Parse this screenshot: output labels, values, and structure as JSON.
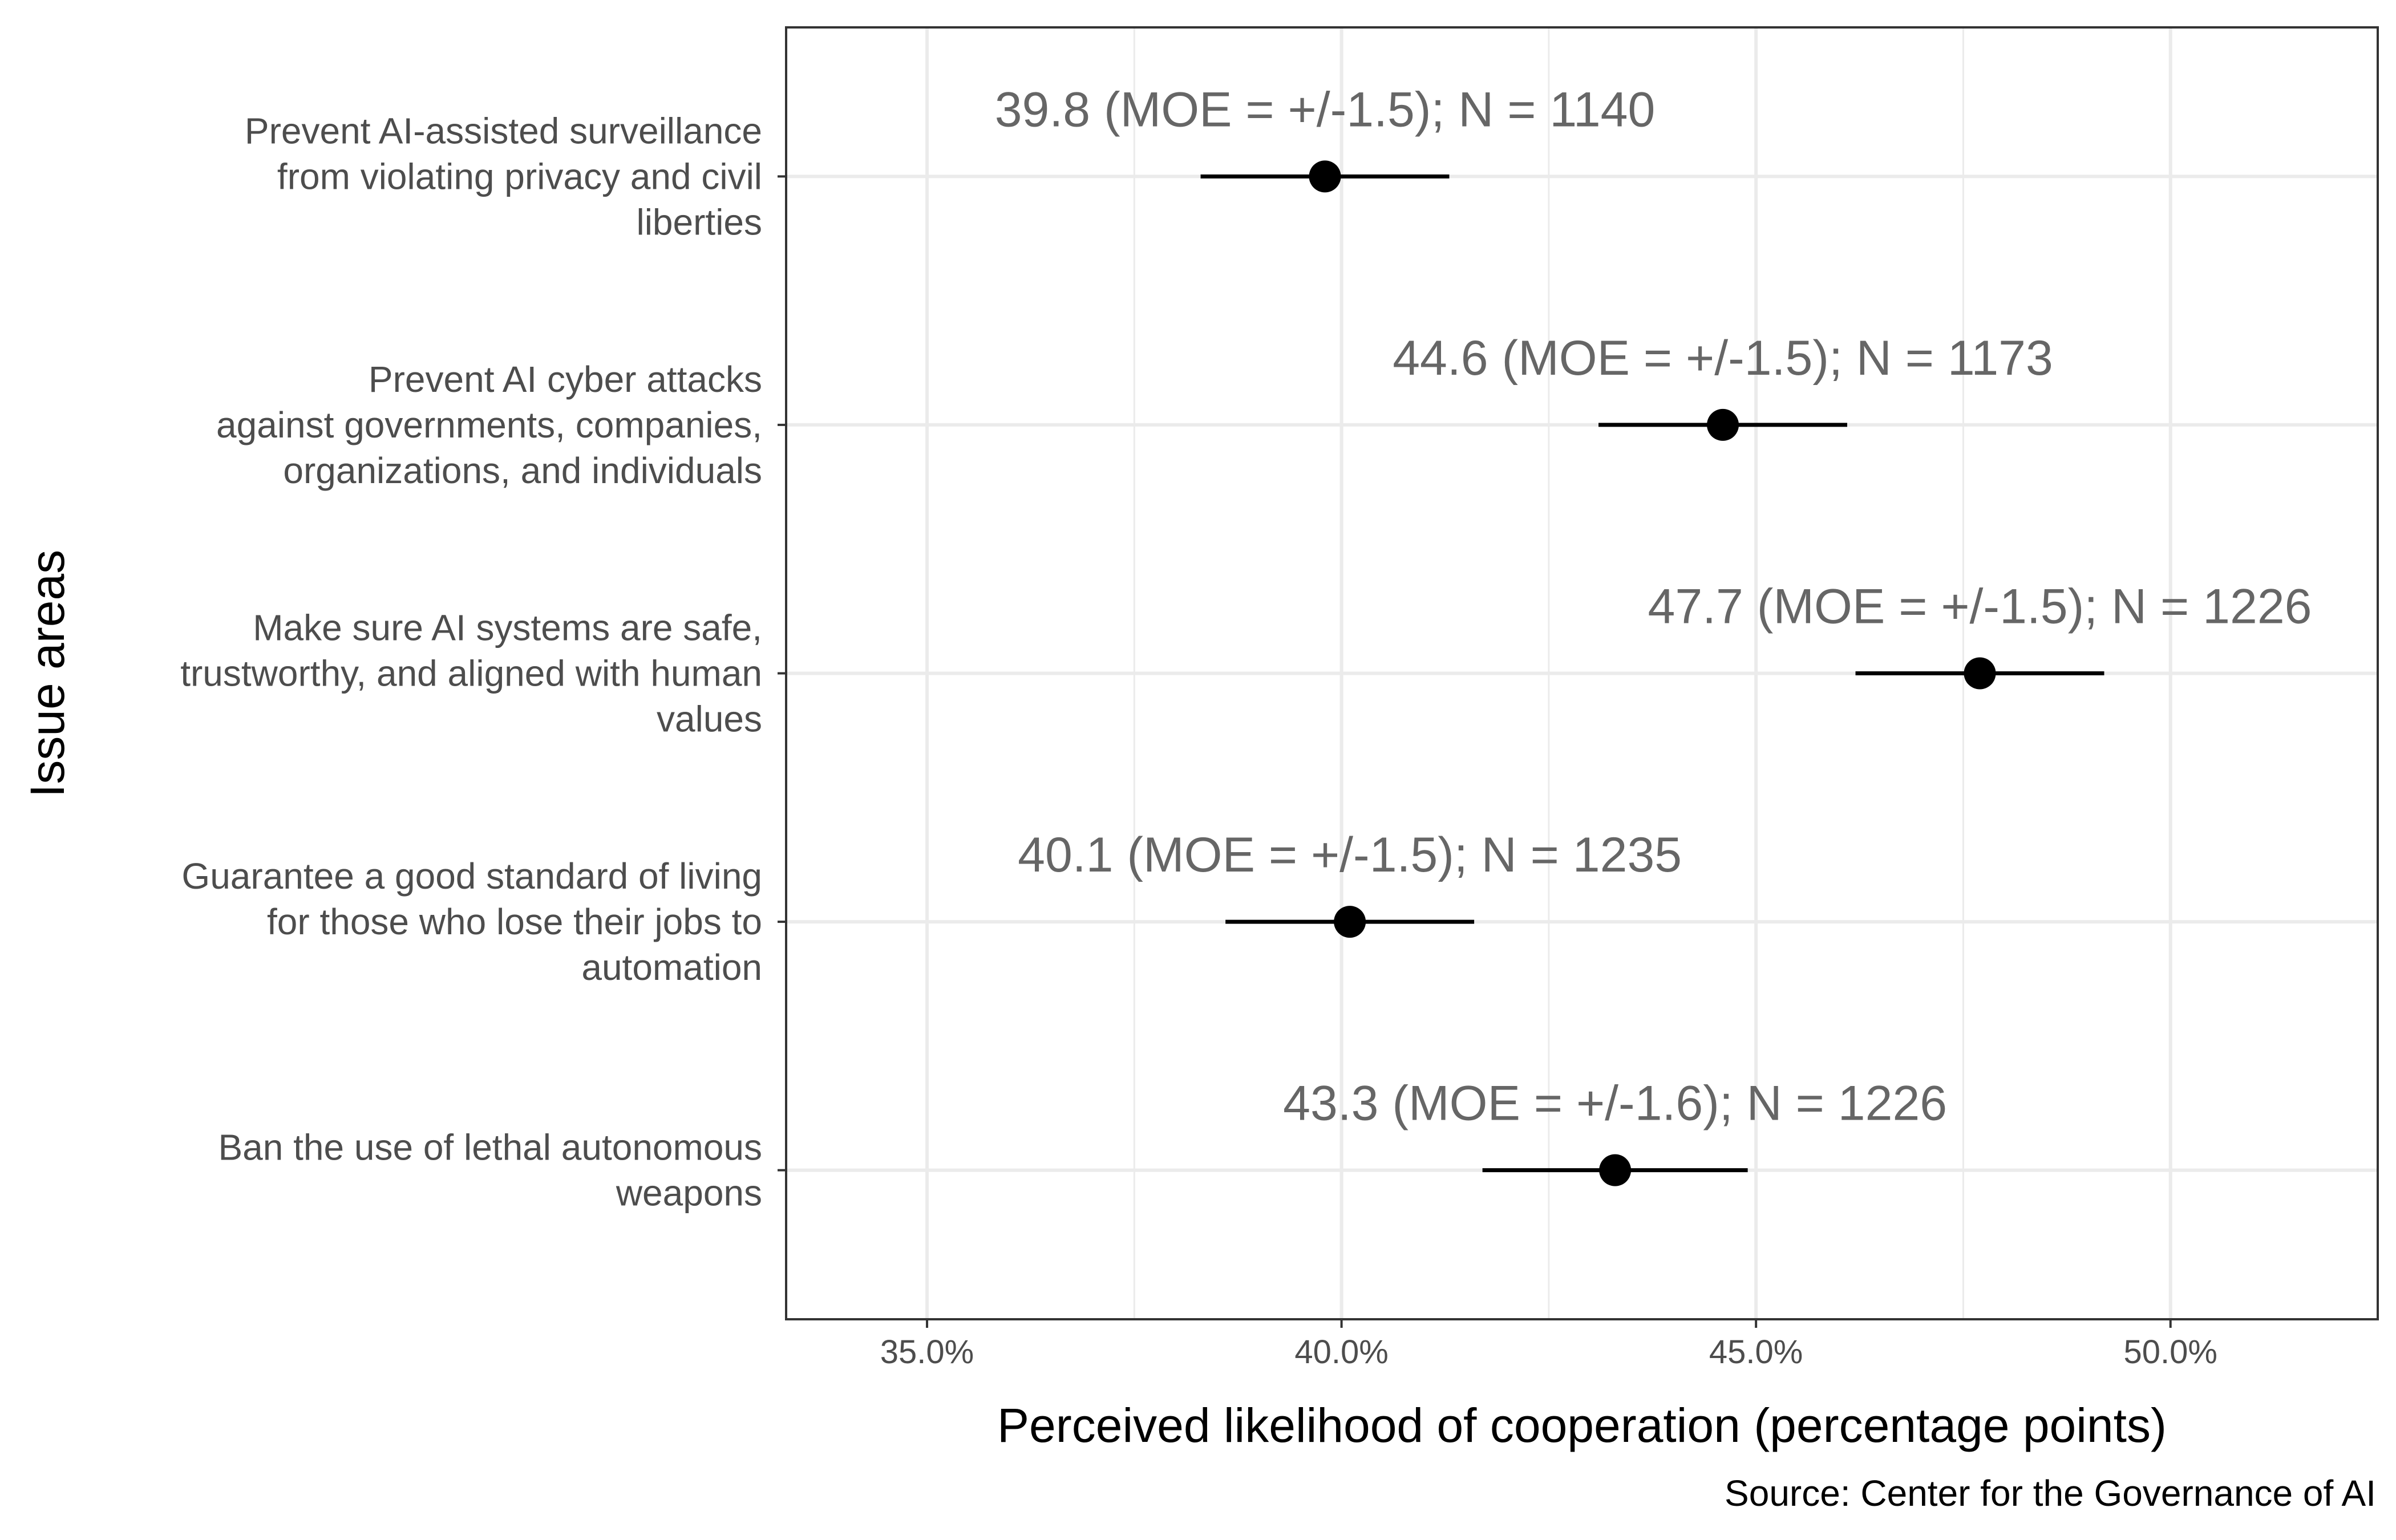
{
  "chart_data": {
    "type": "scatter",
    "orientation": "horizontal",
    "xlabel": "Perceived likelihood of cooperation (percentage points)",
    "ylabel": "Issue areas",
    "caption": "Source: Center for the Governance of AI",
    "xlim": [
      33.3,
      52.5
    ],
    "x_ticks": [
      35,
      40,
      45,
      50
    ],
    "x_tick_labels": [
      "35.0%",
      "40.0%",
      "45.0%",
      "50.0%"
    ],
    "grid": true,
    "legend": "none",
    "colors": {
      "point": "#000000",
      "grid": "#ebebeb",
      "panel_border": "#333333",
      "label": "#666666"
    },
    "points": [
      {
        "category": [
          "Prevent AI-assisted surveillance",
          "from violating privacy and civil",
          "liberties"
        ],
        "value": 39.8,
        "moe": 1.5,
        "label": "39.8 (MOE = +/-1.5); N = 1140"
      },
      {
        "category": [
          "Prevent AI cyber attacks",
          "against governments, companies,",
          "organizations, and individuals"
        ],
        "value": 44.6,
        "moe": 1.5,
        "label": "44.6 (MOE = +/-1.5); N = 1173"
      },
      {
        "category": [
          "Make sure AI systems are safe,",
          "trustworthy, and aligned with human",
          "values"
        ],
        "value": 47.7,
        "moe": 1.5,
        "label": "47.7 (MOE = +/-1.5); N = 1226"
      },
      {
        "category": [
          "Guarantee a good standard of living",
          "for those who lose their jobs to",
          "automation"
        ],
        "value": 40.1,
        "moe": 1.5,
        "label": "40.1 (MOE = +/-1.5); N = 1235"
      },
      {
        "category": [
          "Ban the use of lethal autonomous",
          "weapons"
        ],
        "value": 43.3,
        "moe": 1.6,
        "label": "43.3 (MOE = +/-1.6); N = 1226"
      }
    ]
  }
}
